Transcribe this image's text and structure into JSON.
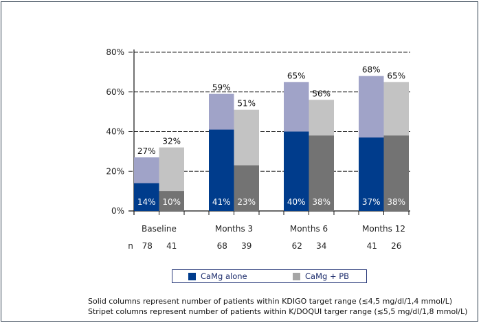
{
  "chart_data": {
    "type": "bar",
    "stacked_pairs": true,
    "title": "",
    "xlabel": "",
    "ylabel": "",
    "ylim": [
      0,
      80
    ],
    "yticks": [
      "0%",
      "20%",
      "40%",
      "60%",
      "80%"
    ],
    "ytick_values": [
      0,
      20,
      40,
      60,
      80
    ],
    "grid": "dashed horizontal",
    "categories": [
      "Baseline",
      "Months 3",
      "Months 6",
      "Months 12"
    ],
    "n_label": "n",
    "series": [
      {
        "name": "CaMg alone",
        "solid_label": "KDIGO",
        "kdigo_values": [
          14,
          41,
          40,
          37
        ],
        "kdoqi_values": [
          27,
          59,
          65,
          68
        ],
        "n": [
          78,
          68,
          62,
          41
        ],
        "solid_color": "#003c8c",
        "light_color": "#a0a3c8"
      },
      {
        "name": "CaMg + PB",
        "kdigo_values": [
          10,
          23,
          38,
          38
        ],
        "kdoqi_values": [
          32,
          51,
          56,
          65
        ],
        "n": [
          41,
          39,
          34,
          26
        ],
        "solid_color": "#737373",
        "light_color": "#c3c3c3"
      }
    ],
    "legend": {
      "position": "bottom-center",
      "entries": [
        {
          "label": "CaMg alone",
          "color": "#003c8c"
        },
        {
          "label": "CaMg + PB",
          "color": "#a6a6a6"
        }
      ]
    },
    "notes": [
      "Solid columns represent number of patients within KDIGO target range (≲4,5 mg/dl/1,4 mmol/L)",
      "Stripet columns represent number of patients within K/DOQUI targer range (≲5,5 mg/dl/1,8 mmol/L)"
    ]
  }
}
